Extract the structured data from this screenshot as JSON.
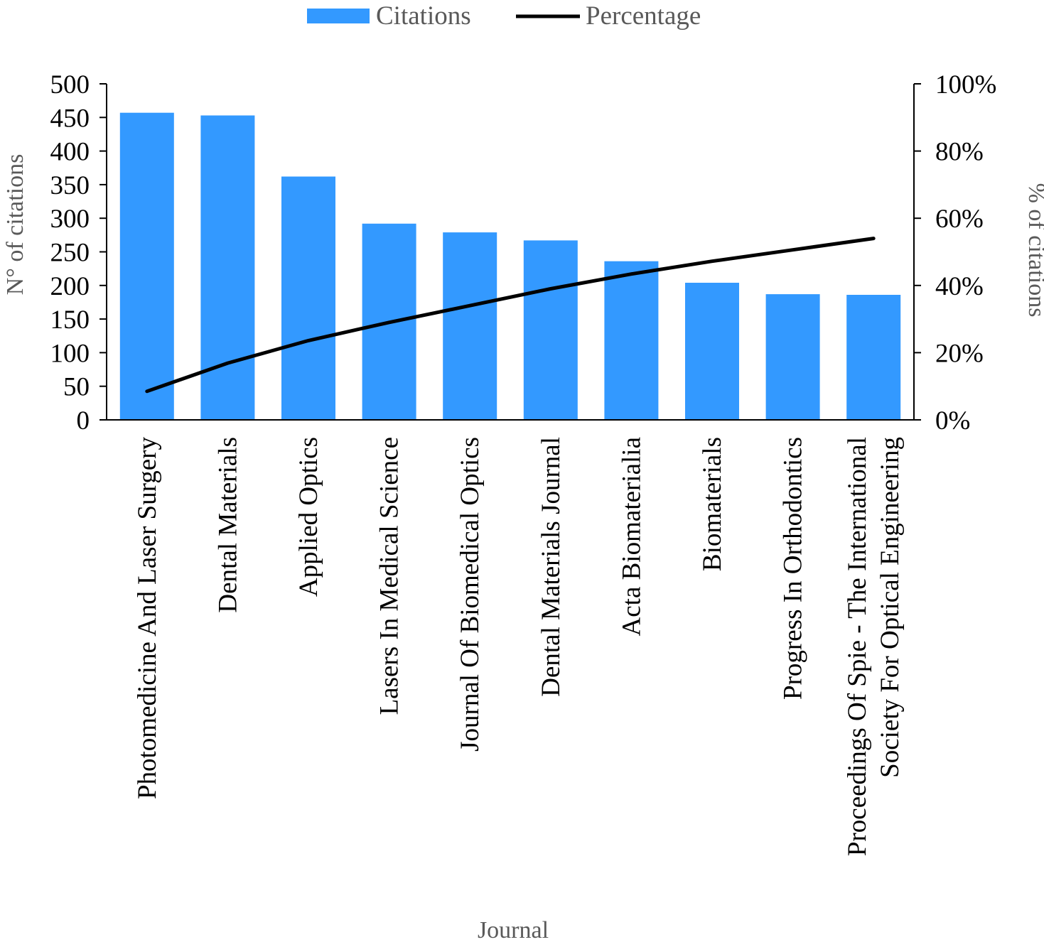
{
  "chart_data": {
    "type": "bar",
    "title": "",
    "xlabel": "Journal",
    "ylabel": "N° of citations",
    "y2label": "% of citations",
    "ylim": [
      0,
      500
    ],
    "y2lim": [
      0,
      100
    ],
    "yticks": [
      "0",
      "50",
      "100",
      "150",
      "200",
      "250",
      "300",
      "350",
      "400",
      "450",
      "500"
    ],
    "y2ticks": [
      "0%",
      "20%",
      "40%",
      "60%",
      "80%",
      "100%"
    ],
    "legend_position": "top-center",
    "grid": false,
    "categories": [
      [
        "Photomedicine And Laser Surgery"
      ],
      [
        "Dental Materials"
      ],
      [
        "Applied Optics"
      ],
      [
        "Lasers In Medical Science"
      ],
      [
        "Journal Of Biomedical Optics"
      ],
      [
        "Dental Materials Journal"
      ],
      [
        "Acta Biomaterialia"
      ],
      [
        "Biomaterials"
      ],
      [
        "Progress In Orthodontics"
      ],
      [
        "Proceedings Of Spie - The International",
        "Society For Optical Engineering"
      ]
    ],
    "series": [
      {
        "name": "Citations",
        "type": "bar",
        "axis": "left",
        "color": "#3399FF",
        "values": [
          457,
          453,
          362,
          292,
          279,
          267,
          236,
          204,
          187,
          186
        ]
      },
      {
        "name": "Percentage",
        "type": "line",
        "axis": "right",
        "color": "#000000",
        "values": [
          8.5,
          16.9,
          23.6,
          29.0,
          34.0,
          39.0,
          43.4,
          47.2,
          50.6,
          54.0
        ]
      }
    ]
  }
}
